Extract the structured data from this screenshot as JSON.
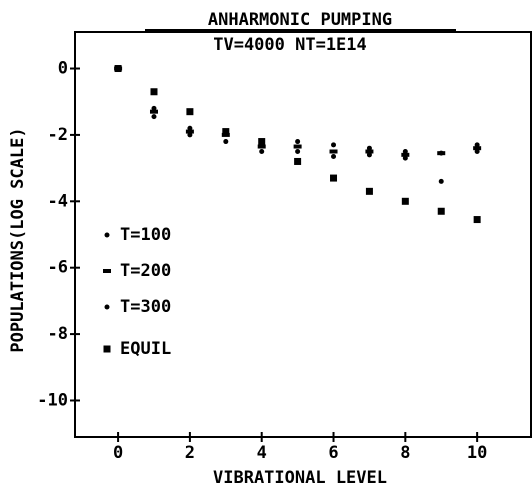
{
  "chart_data": {
    "type": "scatter",
    "title": "ANHARMONIC PUMPING",
    "subtitle": "TV=4000 NT=1E14",
    "x_label": "VIBRATIONAL LEVEL",
    "y_label": "POPULATIONS(LOG SCALE)",
    "x": [
      0,
      1,
      2,
      3,
      4,
      5,
      6,
      7,
      8,
      9,
      10
    ],
    "series": [
      {
        "name": "T=100",
        "color": "#000000",
        "values": [
          0,
          -1.45,
          -2.0,
          -2.2,
          -2.5,
          -2.5,
          -2.65,
          -2.6,
          -2.7,
          -3.4,
          -2.5
        ]
      },
      {
        "name": "T=200",
        "color": "#000000",
        "values": [
          0,
          -1.3,
          -1.9,
          -2.0,
          -2.35,
          -2.35,
          -2.5,
          -2.5,
          -2.6,
          -2.55,
          -2.4
        ]
      },
      {
        "name": "T=300",
        "color": "#000000",
        "values": [
          0,
          -1.2,
          -1.8,
          -1.9,
          -2.2,
          -2.2,
          -2.3,
          -2.4,
          -2.5,
          -2.55,
          -2.3
        ]
      },
      {
        "name": "EQUIL",
        "color": "#000000",
        "values": [
          0,
          -0.7,
          -1.3,
          -1.9,
          -2.2,
          -2.8,
          -3.3,
          -3.7,
          -4.0,
          -4.3,
          -4.55
        ]
      }
    ],
    "xlim": [
      -1.2,
      11.5
    ],
    "xticks": [
      0,
      2,
      4,
      6,
      8,
      10
    ],
    "ylim": [
      -11.1,
      1.1
    ],
    "yticks": [
      0,
      -2,
      -4,
      -6,
      -8,
      -10
    ],
    "legend": "center left",
    "grid": false
  }
}
